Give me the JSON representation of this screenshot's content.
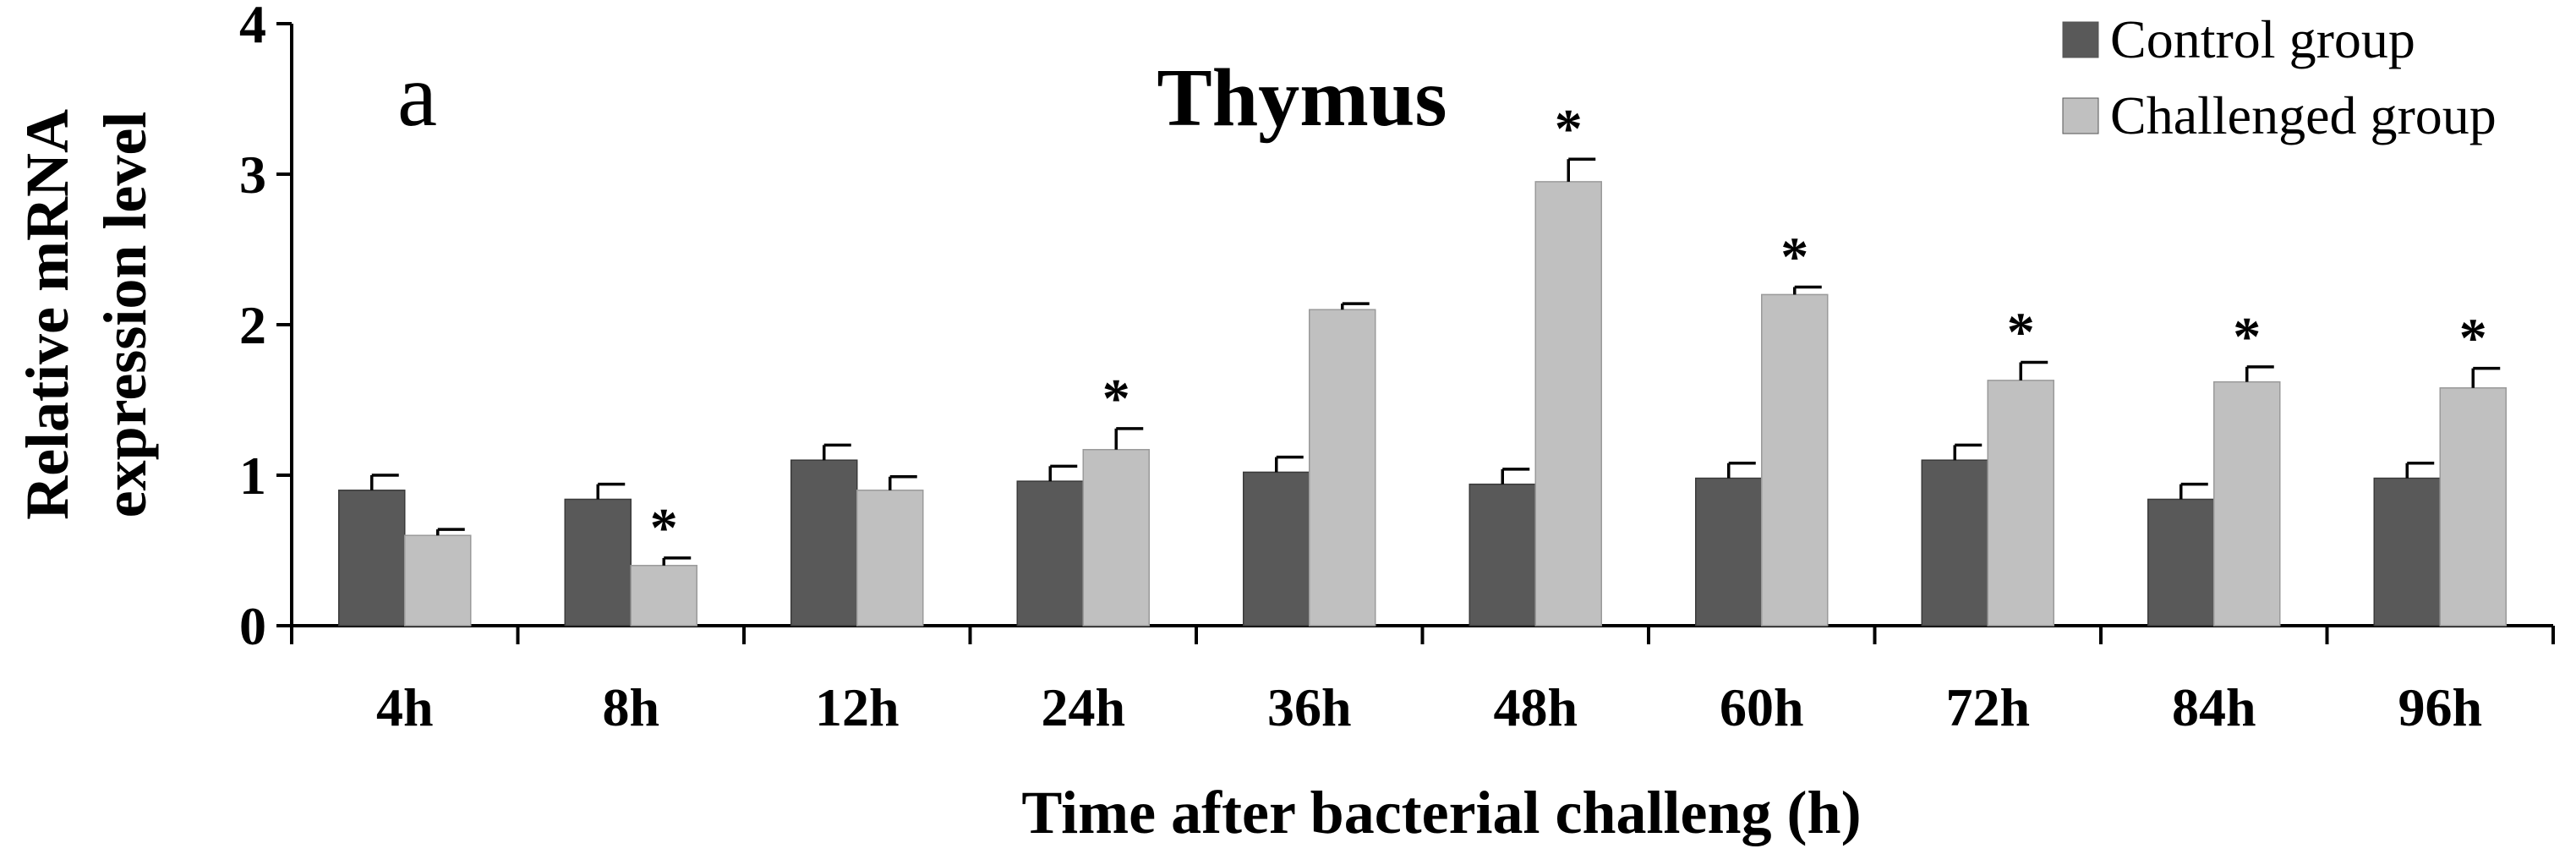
{
  "chart_data": {
    "type": "bar",
    "panel_label": "a",
    "title": "Thymus",
    "xlabel": "Time after bacterial challeng (h)",
    "ylabel_lines": [
      "Relative mRNA",
      "expression level"
    ],
    "ylim": [
      0,
      4
    ],
    "yticks": [
      0,
      1,
      2,
      3,
      4
    ],
    "grid": false,
    "legend_position": "top-right",
    "categories": [
      "4h",
      "8h",
      "12h",
      "24h",
      "36h",
      "48h",
      "60h",
      "72h",
      "84h",
      "96h"
    ],
    "series": [
      {
        "name": "Control group",
        "color": "#595959",
        "values": [
          0.9,
          0.84,
          1.1,
          0.96,
          1.02,
          0.94,
          0.98,
          1.1,
          0.84,
          0.98
        ],
        "errors": [
          0.1,
          0.1,
          0.1,
          0.1,
          0.1,
          0.1,
          0.1,
          0.1,
          0.1,
          0.1
        ]
      },
      {
        "name": "Challenged group",
        "color": "#c0c0c0",
        "values": [
          0.6,
          0.4,
          0.9,
          1.17,
          2.1,
          2.95,
          2.2,
          1.63,
          1.62,
          1.58
        ],
        "errors": [
          0.04,
          0.05,
          0.09,
          0.14,
          0.04,
          0.15,
          0.05,
          0.12,
          0.1,
          0.13
        ]
      }
    ],
    "significance_marker": "*",
    "significant_challenged": [
      false,
      true,
      false,
      true,
      false,
      true,
      true,
      true,
      true,
      true
    ]
  }
}
